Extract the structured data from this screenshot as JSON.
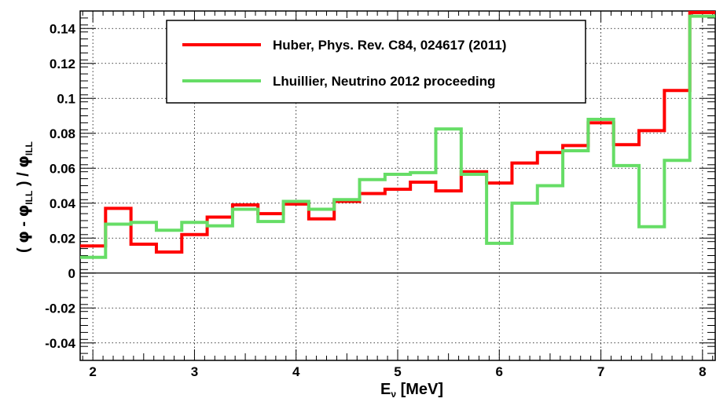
{
  "chart_data": {
    "type": "line",
    "drawstyle": "steps",
    "xlabel": "E",
    "xlabel_sub": "ν",
    "xlabel_unit": " [MeV]",
    "ylabel_parts": {
      "open": "( ",
      "phi1": "φ",
      "minus": " - ",
      "phi2": "φ",
      "sub1": "ILL",
      "mid": " ) / ",
      "phi3": "φ",
      "sub2": "ILL"
    },
    "xlim": [
      1.875,
      8.125
    ],
    "ylim": [
      -0.05,
      0.15
    ],
    "xticks": [
      "2",
      "3",
      "4",
      "5",
      "6",
      "7",
      "8"
    ],
    "yticks": [
      "-0.04",
      "-0.02",
      "0",
      "0.02",
      "0.04",
      "0.06",
      "0.08",
      "0.1",
      "0.12",
      "0.14"
    ],
    "grid": true,
    "legend_position": "top-center",
    "bin_edges": [
      1.875,
      2.125,
      2.375,
      2.625,
      2.875,
      3.125,
      3.375,
      3.625,
      3.875,
      4.125,
      4.375,
      4.625,
      4.875,
      5.125,
      5.375,
      5.625,
      5.875,
      6.125,
      6.375,
      6.625,
      6.875,
      7.125,
      7.375,
      7.625,
      7.875,
      8.125
    ],
    "series": [
      {
        "name": "Huber, Phys. Rev. C84, 024617 (2011)",
        "color": "#ff0000",
        "values": [
          0.0155,
          0.037,
          0.0165,
          0.012,
          0.022,
          0.032,
          0.039,
          0.034,
          0.0395,
          0.031,
          0.041,
          0.0455,
          0.048,
          0.052,
          0.047,
          0.058,
          0.0515,
          0.063,
          0.069,
          0.073,
          0.086,
          0.0735,
          0.0815,
          0.1045,
          0.15
        ]
      },
      {
        "name": "Lhuillier, Neutrino 2012 proceeding",
        "color": "#66dd66",
        "values": [
          0.009,
          0.028,
          0.029,
          0.0245,
          0.029,
          0.027,
          0.0365,
          0.0295,
          0.041,
          0.0365,
          0.042,
          0.0535,
          0.0565,
          0.0575,
          0.0825,
          0.0565,
          0.017,
          0.04,
          0.05,
          0.07,
          0.088,
          0.0615,
          0.0265,
          0.0645,
          0.147
        ]
      }
    ]
  }
}
